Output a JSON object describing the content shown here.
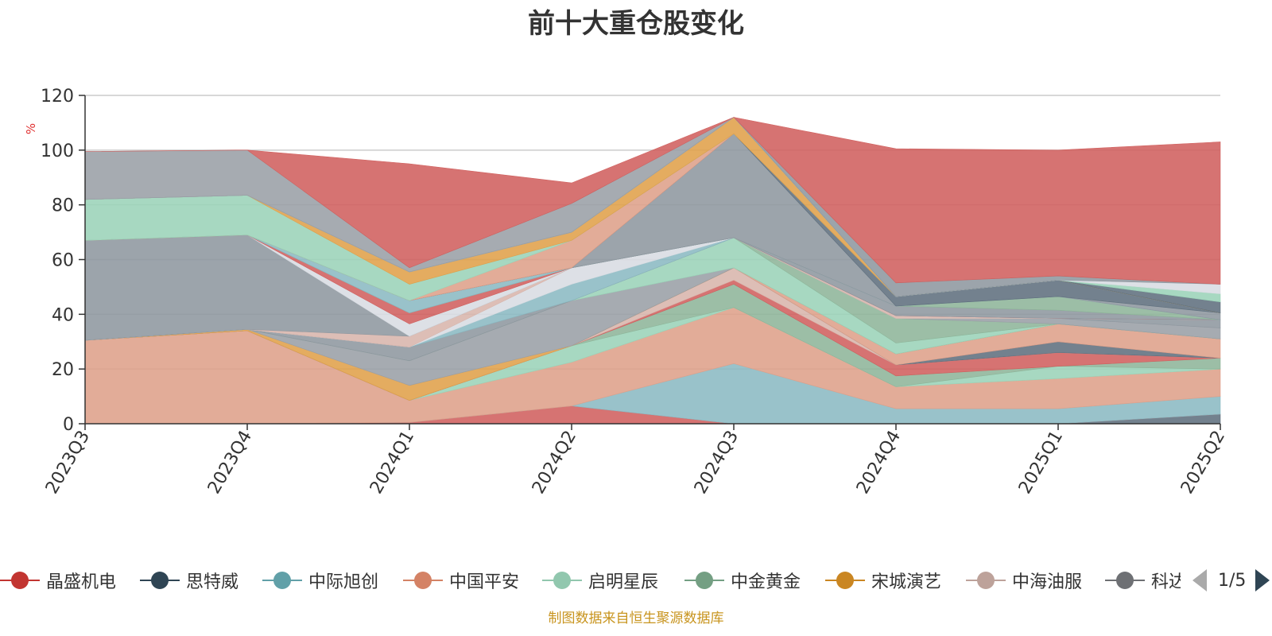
{
  "chart_data": {
    "type": "area",
    "title": "前十大重仓股变化",
    "ylabel": "%",
    "xlabel": "",
    "ylim": [
      0,
      120
    ],
    "yticks": [
      "0",
      "20",
      "40",
      "60",
      "80",
      "100",
      "120"
    ],
    "categories": [
      "2023Q3",
      "2023Q4",
      "2024Q1",
      "2024Q2",
      "2024Q3",
      "2024Q4",
      "2025Q1",
      "2025Q2"
    ],
    "stacked": true,
    "grid": true,
    "legend_position": "bottom",
    "series": [
      {
        "name": "",
        "color": "#60707e",
        "values": [
          0,
          0,
          0,
          0,
          0,
          0,
          0,
          3.5
        ]
      },
      {
        "name": "",
        "color": "#d0605e",
        "values": [
          0,
          0,
          0.5,
          6.5,
          0,
          0,
          0,
          0
        ]
      },
      {
        "name": "",
        "color": "#8bbac3",
        "values": [
          0,
          0,
          0,
          0,
          22,
          5.5,
          5.5,
          6.5
        ]
      },
      {
        "name": "",
        "color": "#dea08a",
        "values": [
          30.5,
          34,
          8,
          16,
          20.5,
          8,
          11,
          10
        ]
      },
      {
        "name": "",
        "color": "#9bd3b8",
        "values": [
          0,
          0,
          0,
          6,
          0,
          0,
          4.5,
          0
        ]
      },
      {
        "name": "",
        "color": "#8eb59a",
        "values": [
          0,
          0,
          0,
          0,
          8.5,
          4,
          0,
          4
        ]
      },
      {
        "name": "",
        "color": "#d0605e",
        "values": [
          0,
          0,
          0,
          0,
          1.5,
          4,
          5,
          0
        ]
      },
      {
        "name": "",
        "color": "#d8b5ac",
        "values": [
          0,
          0,
          0,
          0,
          4.5,
          0,
          0,
          0
        ]
      },
      {
        "name": "",
        "color": "#60707e",
        "values": [
          0,
          0,
          0,
          0,
          0,
          0,
          4,
          0
        ]
      },
      {
        "name": "",
        "color": "#dea08a",
        "values": [
          0,
          0,
          0,
          0,
          0,
          4,
          6.5,
          7
        ]
      },
      {
        "name": "",
        "color": "#e0a04a",
        "values": [
          0,
          0.5,
          5.5,
          0,
          0,
          0,
          0,
          0
        ]
      },
      {
        "name": "",
        "color": "#9a9fa6",
        "values": [
          0,
          0,
          9,
          16.5,
          0,
          0,
          0,
          0
        ]
      },
      {
        "name": "",
        "color": "#9bd3b8",
        "values": [
          0,
          0,
          0,
          0,
          11,
          4,
          0,
          0
        ]
      },
      {
        "name": "",
        "color": "#8eb59a",
        "values": [
          0,
          0,
          0,
          0,
          0,
          9,
          0,
          0
        ]
      },
      {
        "name": "",
        "color": "#9a9fa6",
        "values": [
          0,
          0,
          0,
          0,
          0,
          0,
          2,
          4
        ]
      },
      {
        "name": "",
        "color": "#8e979f",
        "values": [
          0,
          0,
          5,
          0,
          0,
          0,
          0,
          3
        ]
      },
      {
        "name": "",
        "color": "#8bbac3",
        "values": [
          0,
          0,
          0,
          6,
          0,
          0,
          0,
          0
        ]
      },
      {
        "name": "",
        "color": "#d8dce2",
        "values": [
          0,
          0,
          0,
          6,
          0,
          0,
          0,
          0
        ]
      },
      {
        "name": "",
        "color": "#d8b5ac",
        "values": [
          0,
          0,
          4,
          0,
          0,
          1,
          0,
          0
        ]
      },
      {
        "name": "",
        "color": "#8e979f",
        "values": [
          36.5,
          34.5,
          0,
          0,
          0,
          0,
          0,
          0
        ]
      },
      {
        "name": "",
        "color": "#d8dce2",
        "values": [
          0,
          0,
          4.5,
          0,
          0,
          0,
          0,
          0
        ]
      },
      {
        "name": "",
        "color": "#d0605e",
        "values": [
          0,
          0,
          4,
          0,
          0,
          0,
          0,
          0
        ]
      },
      {
        "name": "",
        "color": "#8e979f",
        "values": [
          0,
          0,
          0,
          0,
          0,
          3.5,
          3,
          0
        ]
      },
      {
        "name": "",
        "color": "#8eb59a",
        "values": [
          0,
          0,
          0,
          0,
          0,
          0,
          5,
          0
        ]
      },
      {
        "name": "",
        "color": "#8bbac3",
        "values": [
          0,
          0,
          4.5,
          0,
          0,
          0,
          0,
          0
        ]
      },
      {
        "name": "",
        "color": "#8e979f",
        "values": [
          0,
          0,
          0,
          0,
          38,
          0,
          0,
          2.5
        ]
      },
      {
        "name": "",
        "color": "#60707e",
        "values": [
          0,
          0,
          0,
          0,
          0,
          3.5,
          6,
          0
        ]
      },
      {
        "name": "",
        "color": "#dea08a",
        "values": [
          0,
          0,
          0,
          10,
          0,
          0,
          0,
          0
        ]
      },
      {
        "name": "",
        "color": "#9bd3b8",
        "values": [
          15,
          14.5,
          6,
          0,
          0,
          0,
          0,
          0
        ]
      },
      {
        "name": "",
        "color": "#e0a04a",
        "values": [
          0,
          0,
          4.5,
          3,
          6,
          0,
          0,
          0
        ]
      },
      {
        "name": "",
        "color": "#60707e",
        "values": [
          0,
          0,
          0,
          0,
          0,
          0,
          0,
          4
        ]
      },
      {
        "name": "",
        "color": "#9bd3b8",
        "values": [
          0,
          0,
          0,
          0,
          0,
          0,
          0,
          3
        ]
      },
      {
        "name": "",
        "color": "#d8dce2",
        "values": [
          0,
          0,
          0,
          0,
          0,
          0,
          0,
          3.5
        ]
      },
      {
        "name": "",
        "color": "#8e979f",
        "values": [
          0,
          0,
          0,
          0,
          0,
          5,
          1.5,
          0
        ]
      },
      {
        "name": "",
        "color": "#9a9fa6",
        "values": [
          17.5,
          16.5,
          1.5,
          10.5,
          0,
          0,
          0,
          0
        ]
      },
      {
        "name": "",
        "color": "#d0605e",
        "values": [
          0,
          0,
          38,
          7.5,
          0,
          49,
          46,
          52
        ]
      }
    ]
  },
  "legend": {
    "items": [
      {
        "label": "晶盛机电",
        "color": "#c23531"
      },
      {
        "label": "思特威",
        "color": "#2f4554"
      },
      {
        "label": "中际旭创",
        "color": "#61a0a8"
      },
      {
        "label": "中国平安",
        "color": "#d48265"
      },
      {
        "label": "启明星辰",
        "color": "#91c7ae"
      },
      {
        "label": "中金黄金",
        "color": "#749f83"
      },
      {
        "label": "宋城演艺",
        "color": "#ca8622"
      },
      {
        "label": "中海油服",
        "color": "#bda29a"
      },
      {
        "label": "科达利",
        "color": "#6e7074"
      }
    ],
    "page": "1/5"
  },
  "footer": {
    "source": "制图数据来自恒生聚源数据库"
  }
}
